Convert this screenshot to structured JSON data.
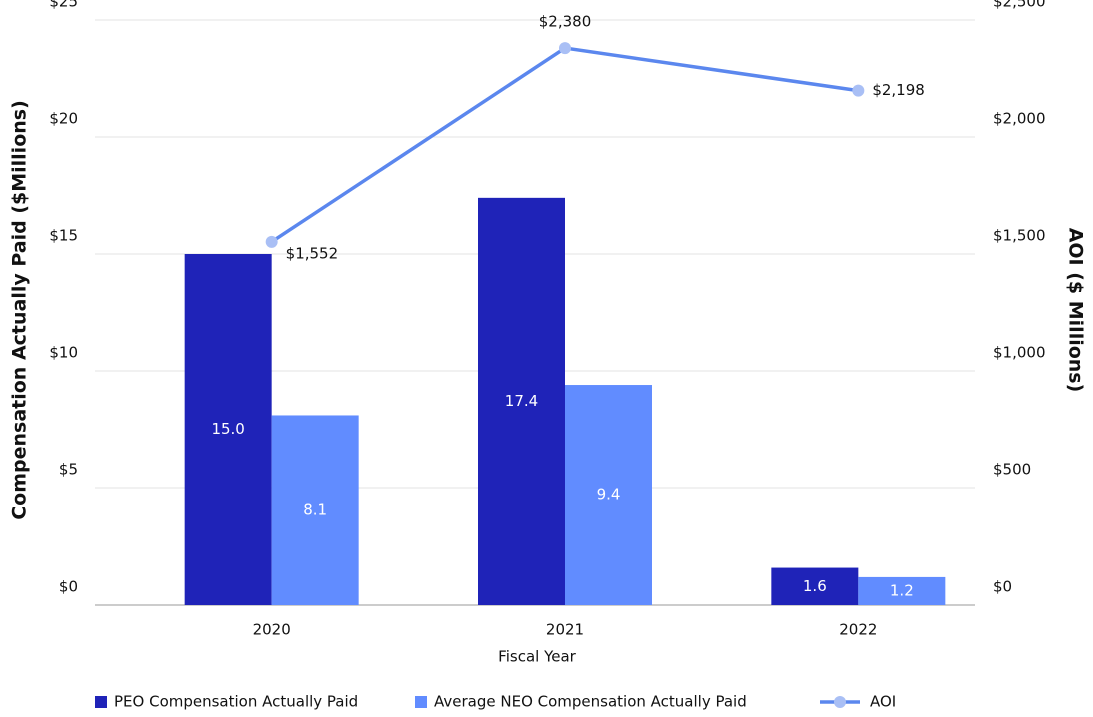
{
  "chart_data": {
    "type": "bar",
    "x_label": "Fiscal Year",
    "y_label": "Compensation Actually Paid ($Millions)",
    "y2_label": "AOI ($ Millions)",
    "categories": [
      "2020",
      "2021",
      "2022"
    ],
    "series": [
      {
        "name": "PEO Compensation Actually Paid",
        "type": "bar",
        "color": "#1f23b8",
        "values": [
          15,
          17.4,
          1.6
        ],
        "value_labels": [
          "15.0",
          "17.4",
          "1.6"
        ]
      },
      {
        "name": "Average NEO Compensation Actually Paid",
        "type": "bar",
        "color": "#618cff",
        "values": [
          8.1,
          9.4,
          1.2
        ]
      },
      {
        "name": "AOI",
        "type": "line",
        "axis": "y2",
        "color": "#5b87ee",
        "marker_color": "#a9bff5",
        "values": [
          1552,
          2380,
          2198
        ],
        "value_labels": [
          "$1,552",
          "$2,380",
          "$2,198"
        ]
      }
    ],
    "ylim": [
      0,
      25
    ],
    "yticks": [
      {
        "value": 0,
        "label": "$0"
      },
      {
        "value": 5,
        "label": "$5"
      },
      {
        "value": 10,
        "label": "$10"
      },
      {
        "value": 15,
        "label": "$15"
      },
      {
        "value": 20,
        "label": "$20"
      },
      {
        "value": 25,
        "label": "$25"
      }
    ],
    "y2lim": [
      0,
      2500
    ],
    "y2ticks": [
      {
        "value": 0,
        "label": "$0"
      },
      {
        "value": 500,
        "label": "$500"
      },
      {
        "value": 1000,
        "label": "$1,000"
      },
      {
        "value": 1500,
        "label": "$1,500"
      },
      {
        "value": 2000,
        "label": "$2,000"
      },
      {
        "value": 2500,
        "label": "$2,500"
      }
    ],
    "grid": true,
    "legend": "bottom"
  }
}
